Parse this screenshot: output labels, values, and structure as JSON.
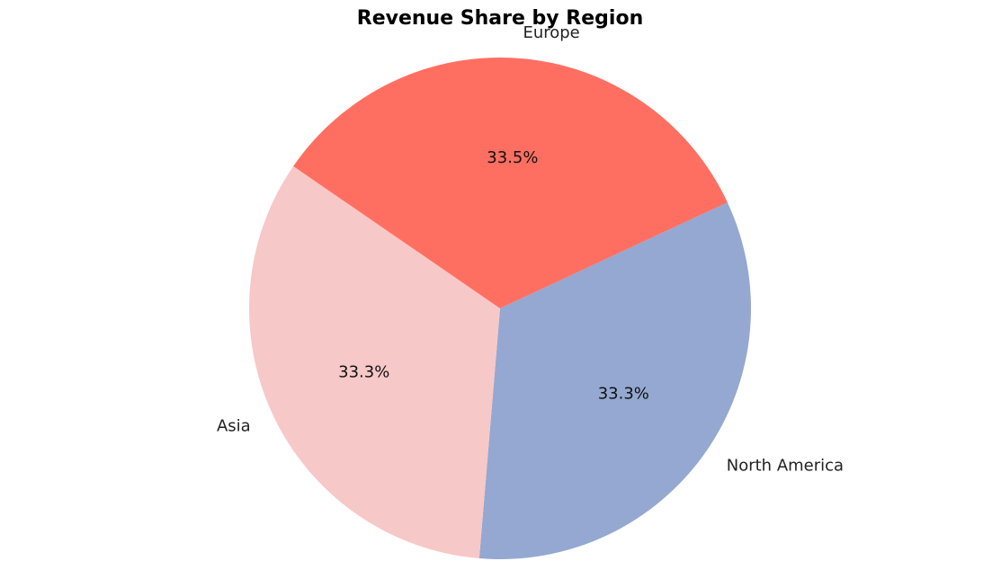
{
  "chart_data": {
    "type": "pie",
    "title": "Revenue Share by Region",
    "categories": [
      "North America",
      "Asia",
      "Europe"
    ],
    "values": [
      33.3,
      33.3,
      33.5
    ],
    "percent_labels": [
      "33.3%",
      "33.3%",
      "33.5%"
    ],
    "colors": [
      "#94a8d1",
      "#f7c8c8",
      "#ff6f61"
    ],
    "direction": "clockwise",
    "legend": "none"
  }
}
